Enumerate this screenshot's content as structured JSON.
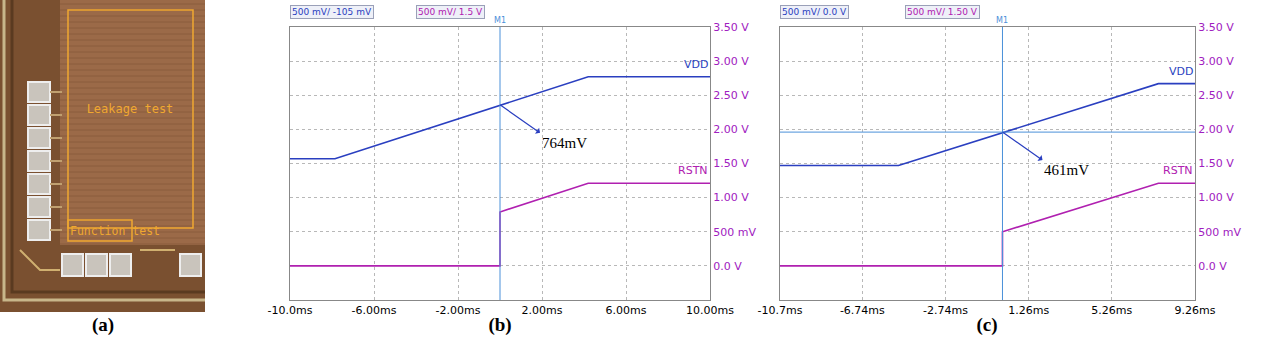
{
  "panel_a": {
    "label": "(a)",
    "regions": [
      {
        "label": "Leakage test"
      },
      {
        "label": "Function test"
      }
    ]
  },
  "chart_data": [
    {
      "type": "line",
      "panel": "(b)",
      "header": [
        {
          "text": "500 mV/ -105 mV",
          "color": "#2a3fc0"
        },
        {
          "text": "500 mV/ 1.5 V",
          "color": "#b020b0"
        }
      ],
      "xlim": [
        -10,
        10
      ],
      "xticks": [
        {
          "value": -10,
          "label": "-10.0ms"
        },
        {
          "value": -6,
          "label": "-6.00ms"
        },
        {
          "value": -2,
          "label": "-2.00ms"
        },
        {
          "value": 2,
          "label": "2.00ms"
        },
        {
          "value": 6,
          "label": "6.00ms"
        },
        {
          "value": 10,
          "label": "10.00ms"
        }
      ],
      "ylim": [
        -0.5,
        3.5
      ],
      "yticks": [
        {
          "value": 3.5,
          "label": "3.50 V"
        },
        {
          "value": 3,
          "label": "3.00 V"
        },
        {
          "value": 2.5,
          "label": "2.50 V"
        },
        {
          "value": 2,
          "label": "2.00 V"
        },
        {
          "value": 1.5,
          "label": "1.50 V"
        },
        {
          "value": 1,
          "label": "1.00 V"
        },
        {
          "value": 0.5,
          "label": "500 mV"
        },
        {
          "value": 0,
          "label": "0.0 V"
        }
      ],
      "grid": true,
      "series": [
        {
          "name": "VDD",
          "color": "#2a3fc0",
          "x": [
            -10,
            -7.86,
            4.2,
            10
          ],
          "values": [
            1.57,
            1.57,
            2.77,
            2.77
          ]
        },
        {
          "name": "RSTN",
          "color": "#b020b0",
          "x": [
            -10,
            0,
            0,
            4.2,
            10
          ],
          "values": [
            0,
            0,
            0.79,
            1.21,
            1.21
          ]
        }
      ],
      "cursor": {
        "x": 0,
        "label": "M1"
      },
      "annotation": {
        "x": 0,
        "y": 2.36,
        "text": "764mV"
      }
    },
    {
      "type": "line",
      "panel": "(c)",
      "header": [
        {
          "text": "500 mV/ 0.0 V",
          "color": "#2a3fc0"
        },
        {
          "text": "500 mV/ 1.50 V",
          "color": "#b020b0"
        }
      ],
      "xlim": [
        -10.7,
        9.26
      ],
      "xticks": [
        {
          "value": -10.7,
          "label": "-10.7ms"
        },
        {
          "value": -6.74,
          "label": "-6.74ms"
        },
        {
          "value": -2.74,
          "label": "-2.74ms"
        },
        {
          "value": 1.26,
          "label": "1.26ms"
        },
        {
          "value": 5.26,
          "label": "5.26ms"
        },
        {
          "value": 9.26,
          "label": "9.26ms"
        }
      ],
      "ylim": [
        -0.5,
        3.5
      ],
      "yticks": [
        {
          "value": 3.5,
          "label": "3.50 V"
        },
        {
          "value": 3,
          "label": "3.00 V"
        },
        {
          "value": 2.5,
          "label": "2.50 V"
        },
        {
          "value": 2,
          "label": "2.00 V"
        },
        {
          "value": 1.5,
          "label": "1.50 V"
        },
        {
          "value": 1,
          "label": "1.00 V"
        },
        {
          "value": 0.5,
          "label": "500 mV"
        },
        {
          "value": 0,
          "label": "0.0 V"
        }
      ],
      "grid": true,
      "series": [
        {
          "name": "VDD",
          "color": "#2a3fc0",
          "x": [
            -10.7,
            -5.0,
            7.5,
            9.26
          ],
          "values": [
            1.47,
            1.47,
            2.67,
            2.67
          ]
        },
        {
          "name": "RSTN",
          "color": "#b020b0",
          "x": [
            -10.7,
            0,
            0,
            7.5,
            9.26
          ],
          "values": [
            0,
            0,
            0.5,
            1.21,
            1.21
          ]
        }
      ],
      "cursor": {
        "x": 0,
        "y": 1.96,
        "label": "M1"
      },
      "annotation": {
        "x": 0,
        "y": 1.96,
        "text": "461mV"
      }
    }
  ]
}
